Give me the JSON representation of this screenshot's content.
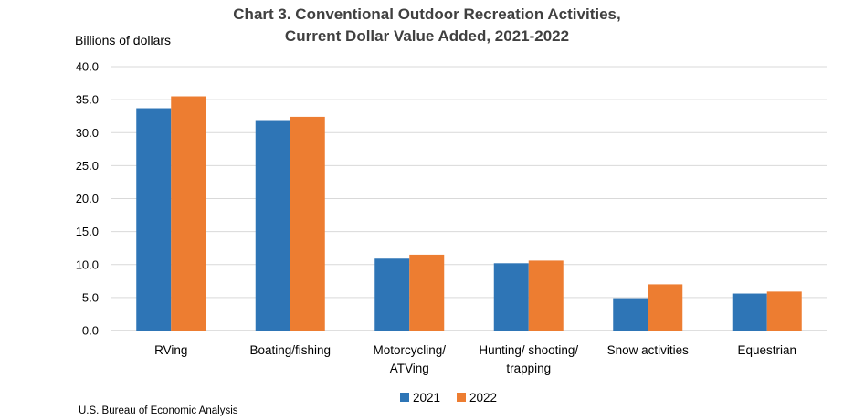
{
  "chart_data": {
    "type": "bar",
    "title": "Chart 3. Conventional Outdoor Recreation Activities,",
    "subtitle": "Current Dollar Value Added, 2021-2022",
    "ylabel": "Billions of dollars",
    "xlabel": "",
    "ylim": [
      0,
      40
    ],
    "yticks": [
      "0.0",
      "5.0",
      "10.0",
      "15.0",
      "20.0",
      "25.0",
      "30.0",
      "35.0",
      "40.0"
    ],
    "categories": [
      [
        "RVing"
      ],
      [
        "Boating/fishing"
      ],
      [
        "Motorcycling/",
        "ATVing"
      ],
      [
        "Hunting/ shooting/",
        "trapping"
      ],
      [
        "Snow activities"
      ],
      [
        "Equestrian"
      ]
    ],
    "series": [
      {
        "name": "2021",
        "color": "#2E75B6",
        "values": [
          33.7,
          31.9,
          10.9,
          10.2,
          4.9,
          5.6
        ]
      },
      {
        "name": "2022",
        "color": "#ED7D31",
        "values": [
          35.5,
          32.4,
          11.5,
          10.6,
          7.0,
          5.9
        ]
      }
    ],
    "grid": true,
    "legend": "bottom-center",
    "source": "U.S. Bureau of Economic Analysis"
  }
}
